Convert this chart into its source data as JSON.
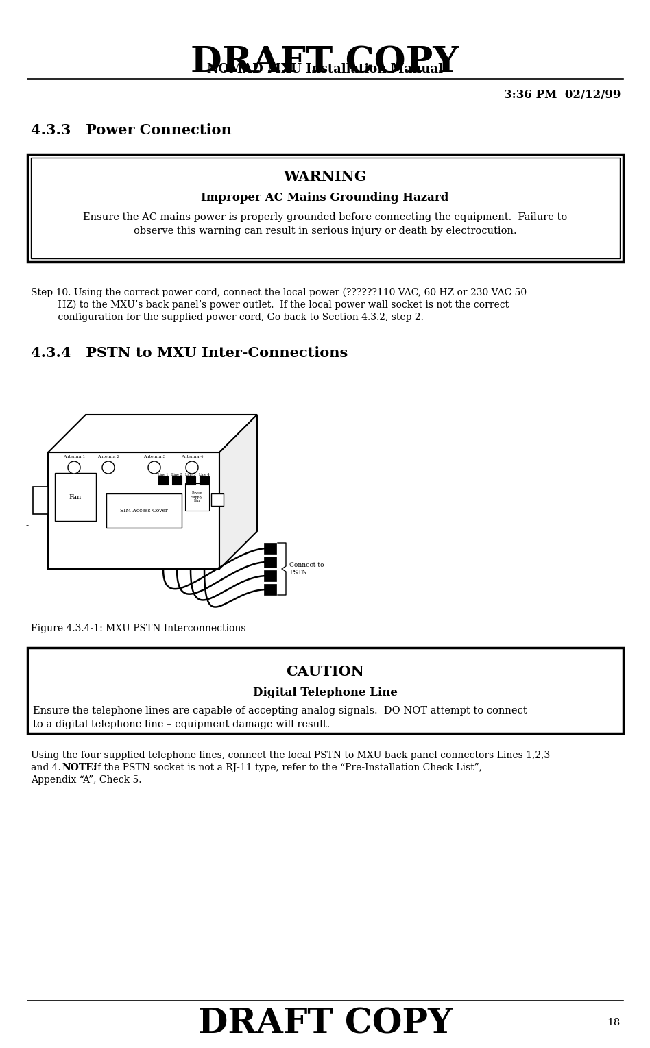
{
  "title": "DRAFT COPY",
  "subtitle": "NOMAD MXU Installation Manual",
  "timestamp": "3:36 PM  02/12/99",
  "section_433": "4.3.3   Power Connection",
  "warning_title": "WARNING",
  "warning_subtitle": "Improper AC Mains Grounding Hazard",
  "warning_body_line1": "Ensure the AC mains power is properly grounded before connecting the equipment.  Failure to",
  "warning_body_line2": "observe this warning can result in serious injury or death by electrocution.",
  "step10_line1": "Step 10. Using the correct power cord, connect the local power (??????110 VAC, 60 HZ or 230 VAC 50",
  "step10_line2": "         HZ) to the MXU’s back panel’s power outlet.  If the local power wall socket is not the correct",
  "step10_line3": "         configuration for the supplied power cord, Go back to Section 4.3.2, step 2.",
  "section_434": "4.3.4   PSTN to MXU Inter-Connections",
  "fig_caption": "Figure 4.3.4-1: MXU PSTN Interconnections",
  "caution_title": "CAUTION",
  "caution_subtitle": "Digital Telephone Line",
  "caution_body_line1": "Ensure the telephone lines are capable of accepting analog signals.  DO NOT attempt to connect",
  "caution_body_line2": "to a digital telephone line – equipment damage will result.",
  "body_line1": "Using the four supplied telephone lines, connect the local PSTN to MXU back panel connectors Lines 1,2,3",
  "body_line2_pre": "and 4.  ",
  "body_line2_bold": "NOTE:",
  "body_line2_post": "  If the PSTN socket is not a RJ-11 type, refer to the “Pre-Installation Check List”,",
  "body_line3": "Appendix “A”, Check 5.",
  "footer": "DRAFT COPY",
  "page_number": "18",
  "bg_color": "#ffffff",
  "text_color": "#000000",
  "ant_labels": [
    "Antenna 1",
    "Antenna 2",
    "Antenna 3",
    "Antenna 4"
  ],
  "line_labels": [
    "Line 1",
    "Line 2",
    "Line 3",
    "Line 4"
  ],
  "fan_label": "Fan",
  "sim_label": "SIM Access Cover",
  "power_label": "Power\nSupply\nFan",
  "connect_label": "Connect to\nPSTN"
}
